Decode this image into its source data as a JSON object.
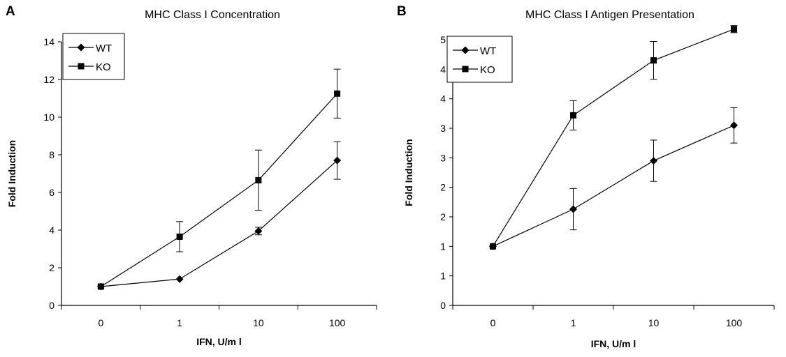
{
  "panel_letters": [
    "A",
    "B"
  ],
  "chart_data": [
    {
      "type": "line",
      "title": "MHC Class I Concentration",
      "xlabel": "IFN, U/m l",
      "ylabel": "Fold Induction",
      "categories": [
        "0",
        "1",
        "10",
        "100"
      ],
      "y_ticks": [
        "0",
        "2",
        "4",
        "6",
        "8",
        "10",
        "12",
        "14"
      ],
      "ylim": [
        0,
        14
      ],
      "grid": false,
      "legend_position": "top-left",
      "series": [
        {
          "name": "WT",
          "marker": "diamond",
          "values": [
            1.0,
            1.4,
            3.95,
            7.7
          ],
          "errors": [
            0,
            0,
            0.2,
            1.0
          ]
        },
        {
          "name": "KO",
          "marker": "square",
          "values": [
            1.0,
            3.65,
            6.65,
            11.25
          ],
          "errors": [
            0,
            0.8,
            1.6,
            1.3
          ]
        }
      ]
    },
    {
      "type": "line",
      "title": "MHC Class I Antigen Presentation",
      "xlabel": "IFN, U/m l",
      "ylabel": "Fold Induction",
      "categories": [
        "0",
        "1",
        "10",
        "100"
      ],
      "y_ticks": [
        "0",
        "1",
        "1",
        "2",
        "2",
        "3",
        "3",
        "4",
        "4",
        "5"
      ],
      "ylim": [
        0,
        4.5
      ],
      "grid": false,
      "legend_position": "top-left",
      "series": [
        {
          "name": "WT",
          "marker": "diamond",
          "values": [
            1.0,
            1.63,
            2.45,
            3.05
          ],
          "errors": [
            0,
            0.35,
            0.35,
            0.3
          ]
        },
        {
          "name": "KO",
          "marker": "square",
          "values": [
            1.0,
            3.22,
            4.15,
            4.68
          ],
          "errors": [
            0,
            0.25,
            0.32,
            0.06
          ]
        }
      ]
    }
  ]
}
